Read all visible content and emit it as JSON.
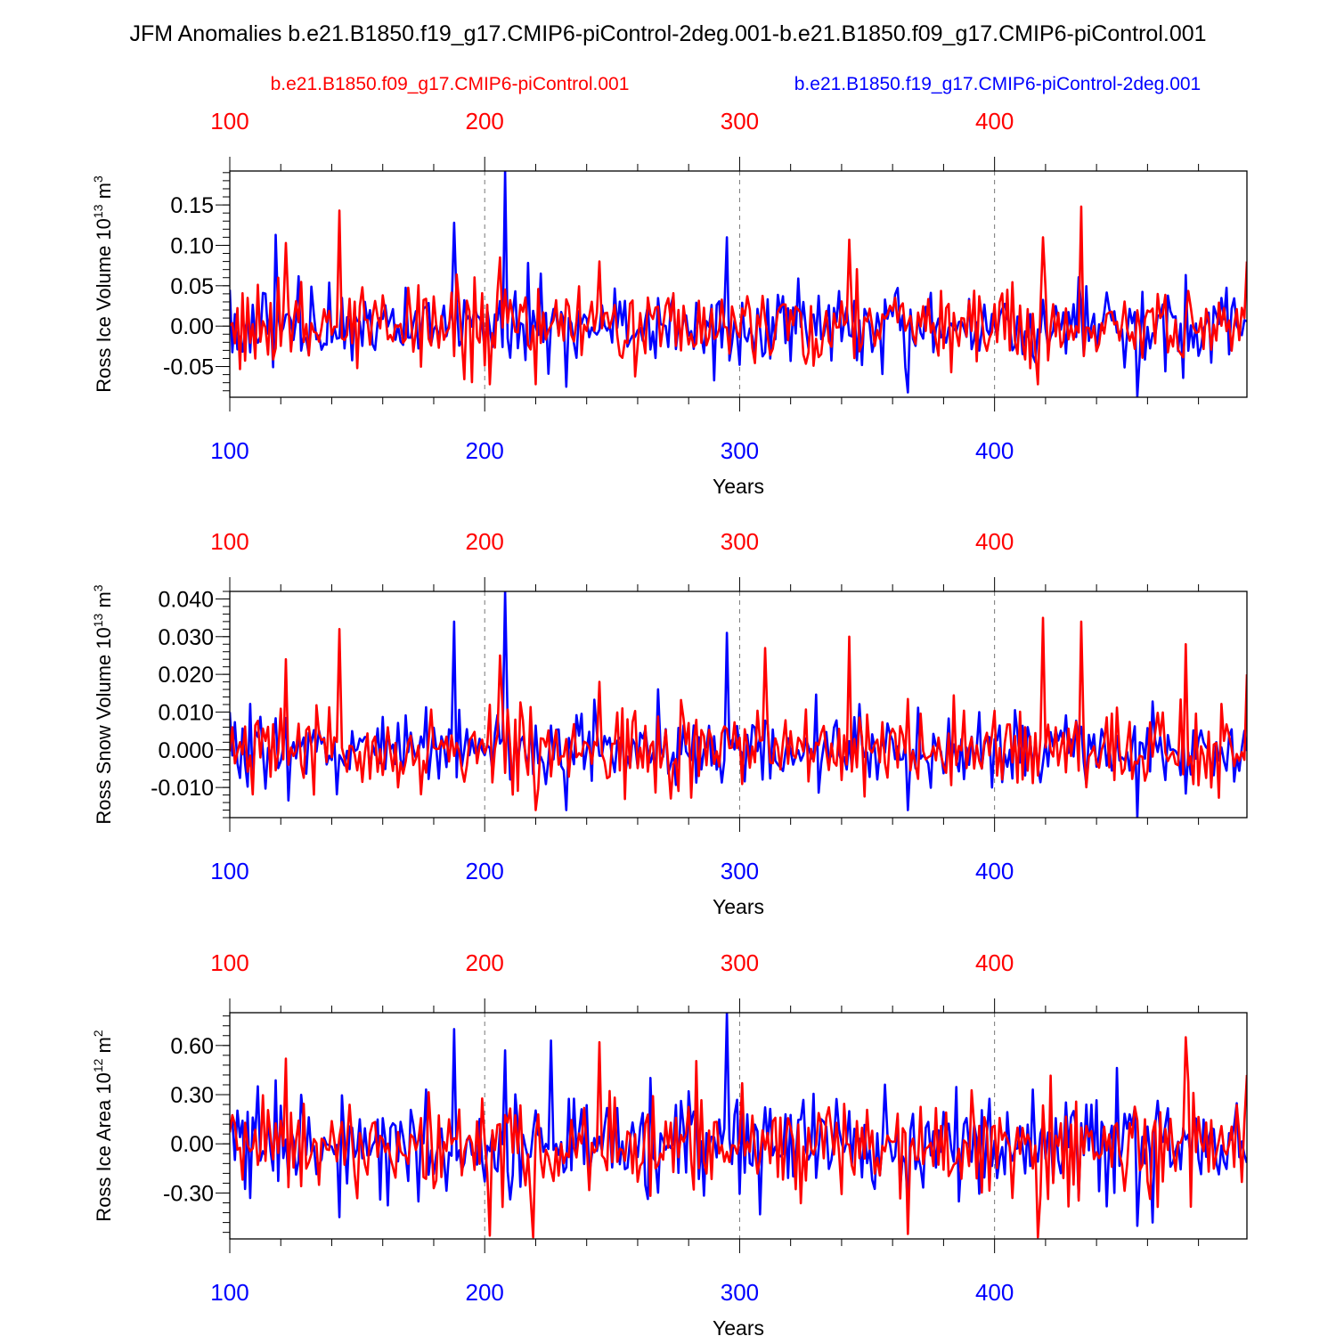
{
  "title": "JFM Anomalies b.e21.B1850.f19_g17.CMIP6-piControl-2deg.001-b.e21.B1850.f09_g17.CMIP6-piControl.001",
  "colors": {
    "red": "#ff0000",
    "blue": "#0000ff",
    "frame": "#000000",
    "grid": "#777777"
  },
  "legend": {
    "red_label": "b.e21.B1850.f09_g17.CMIP6-piControl.001",
    "blue_label": "b.e21.B1850.f19_g17.CMIP6-piControl-2deg.001"
  },
  "chart_data": [
    {
      "type": "line",
      "title": "",
      "ylabel_main": "Ross Ice Volume 10",
      "ylabel_exp": "13",
      "ylabel_unit": " m",
      "ylabel_unit_exp": "3",
      "xlabel": "Years",
      "xlim": [
        100,
        499
      ],
      "ylim": [
        -0.088,
        0.192
      ],
      "yticks": [
        -0.05,
        0.0,
        0.05,
        0.1,
        0.15
      ],
      "yticklabels": [
        "-0.05",
        "0.00",
        "0.05",
        "0.10",
        "0.15"
      ],
      "xticks": [
        100,
        200,
        300,
        400
      ],
      "xticklabels": [
        "100",
        "200",
        "300",
        "400"
      ],
      "grid_x": [
        200,
        300,
        400
      ],
      "series": [
        {
          "name": "b.e21.B1850.f19_g17.CMIP6-piControl-2deg.001",
          "color": "blue",
          "x_start": 100,
          "seed": 137,
          "std": 0.03,
          "peaks": [
            [
              100,
              0.045
            ],
            [
              118,
              0.113
            ],
            [
              188,
              0.128
            ],
            [
              208,
              0.192
            ],
            [
              295,
              0.11
            ],
            [
              456,
              -0.087
            ],
            [
              232,
              -0.075
            ],
            [
              366,
              -0.082
            ]
          ]
        },
        {
          "name": "b.e21.B1850.f09_g17.CMIP6-piControl.001",
          "color": "red",
          "x_start": 100,
          "seed": 251,
          "std": 0.03,
          "peaks": [
            [
              143,
              0.143
            ],
            [
              122,
              0.103
            ],
            [
              206,
              0.085
            ],
            [
              245,
              0.08
            ],
            [
              343,
              0.107
            ],
            [
              419,
              0.11
            ],
            [
              434,
              0.148
            ],
            [
              202,
              -0.072
            ],
            [
              220,
              -0.072
            ],
            [
              417,
              -0.072
            ],
            [
              499,
              0.08
            ]
          ]
        }
      ]
    },
    {
      "type": "line",
      "title": "",
      "ylabel_main": "Ross Snow Volume 10",
      "ylabel_exp": "13",
      "ylabel_unit": " m",
      "ylabel_unit_exp": "3",
      "xlabel": "Years",
      "xlim": [
        100,
        499
      ],
      "ylim": [
        -0.018,
        0.042
      ],
      "yticks": [
        -0.01,
        0.0,
        0.01,
        0.02,
        0.03,
        0.04
      ],
      "yticklabels": [
        "-0.010",
        "0.000",
        "0.010",
        "0.020",
        "0.030",
        "0.040"
      ],
      "xticks": [
        100,
        200,
        300,
        400
      ],
      "xticklabels": [
        "100",
        "200",
        "300",
        "400"
      ],
      "grid_x": [
        200,
        300,
        400
      ],
      "series": [
        {
          "name": "b.e21.B1850.f19_g17.CMIP6-piControl-2deg.001",
          "color": "blue",
          "x_start": 100,
          "seed": 311,
          "std": 0.0065,
          "peaks": [
            [
              100,
              0.01
            ],
            [
              188,
              0.034
            ],
            [
              208,
              0.042
            ],
            [
              295,
              0.031
            ],
            [
              456,
              -0.018
            ],
            [
              366,
              -0.016
            ],
            [
              232,
              -0.016
            ]
          ]
        },
        {
          "name": "b.e21.B1850.f09_g17.CMIP6-piControl.001",
          "color": "red",
          "x_start": 100,
          "seed": 433,
          "std": 0.0065,
          "peaks": [
            [
              143,
              0.032
            ],
            [
              122,
              0.024
            ],
            [
              206,
              0.025
            ],
            [
              245,
              0.018
            ],
            [
              343,
              0.03
            ],
            [
              419,
              0.035
            ],
            [
              434,
              0.034
            ],
            [
              475,
              0.028
            ],
            [
              310,
              0.027
            ],
            [
              220,
              -0.016
            ],
            [
              499,
              0.02
            ]
          ]
        }
      ]
    },
    {
      "type": "line",
      "title": "",
      "ylabel_main": "Ross Ice Area 10",
      "ylabel_exp": "12",
      "ylabel_unit": " m",
      "ylabel_unit_exp": "2",
      "xlabel": "Years",
      "xlim": [
        100,
        499
      ],
      "ylim": [
        -0.58,
        0.8
      ],
      "yticks": [
        -0.3,
        0.0,
        0.3,
        0.6
      ],
      "yticklabels": [
        "-0.30",
        "0.00",
        "0.30",
        "0.60"
      ],
      "xticks": [
        100,
        200,
        300,
        400
      ],
      "xticklabels": [
        "100",
        "200",
        "300",
        "400"
      ],
      "grid_x": [
        200,
        300,
        400
      ],
      "series": [
        {
          "name": "b.e21.B1850.f19_g17.CMIP6-piControl-2deg.001",
          "color": "blue",
          "x_start": 100,
          "seed": 521,
          "std": 0.2,
          "peaks": [
            [
              188,
              0.7
            ],
            [
              208,
              0.57
            ],
            [
              226,
              0.63
            ],
            [
              295,
              0.8
            ],
            [
              456,
              -0.5
            ],
            [
              462,
              -0.48
            ]
          ]
        },
        {
          "name": "b.e21.B1850.f09_g17.CMIP6-piControl.001",
          "color": "red",
          "x_start": 100,
          "seed": 613,
          "std": 0.2,
          "peaks": [
            [
              122,
              0.52
            ],
            [
              245,
              0.62
            ],
            [
              475,
              0.65
            ],
            [
              202,
              -0.56
            ],
            [
              219,
              -0.57
            ],
            [
              417,
              -0.57
            ],
            [
              366,
              -0.55
            ],
            [
              499,
              0.42
            ]
          ]
        }
      ]
    }
  ]
}
